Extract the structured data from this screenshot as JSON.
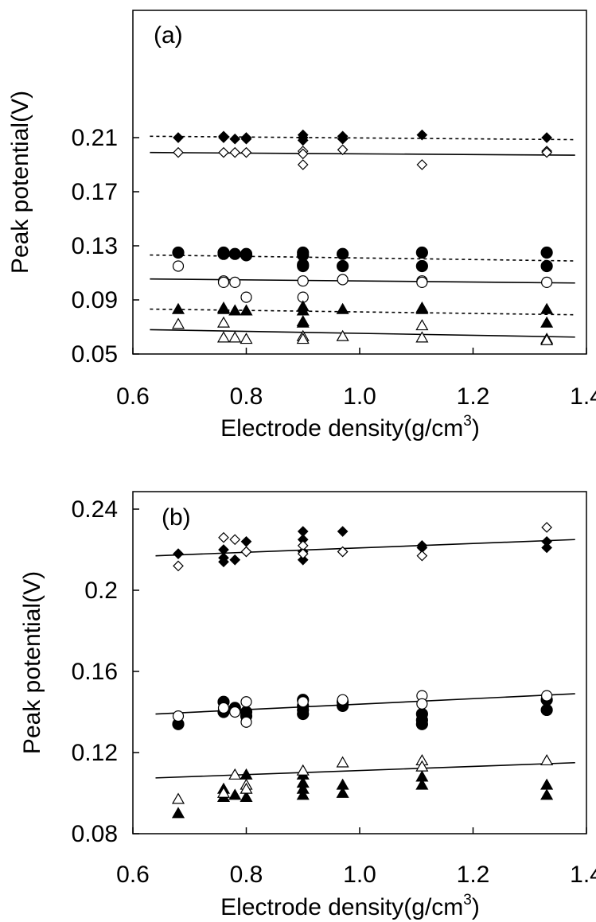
{
  "chart_data": [
    {
      "type": "scatter",
      "panel_label": "(a)",
      "xlabel": "Electrode density(g/cm",
      "xlabel_sup": "3",
      "xlabel_close": ")",
      "ylabel": "Peak potential(V)",
      "xlim": [
        0.6,
        1.4
      ],
      "ylim": [
        0.05,
        0.23
      ],
      "xticks": [
        "0.6",
        "0.8",
        "1.0",
        "1.2",
        "1.4"
      ],
      "yticks": [
        "0.05",
        "0.09",
        "0.13",
        "0.17",
        "0.21"
      ],
      "series": [
        {
          "marker": "diamond",
          "filled": true,
          "x": [
            0.68,
            0.76,
            0.76,
            0.78,
            0.8,
            0.8,
            0.9,
            0.9,
            0.9,
            0.97,
            0.97,
            1.11,
            1.33
          ],
          "y": [
            0.21,
            0.211,
            0.21,
            0.209,
            0.21,
            0.209,
            0.212,
            0.21,
            0.208,
            0.211,
            0.209,
            0.212,
            0.21
          ]
        },
        {
          "marker": "diamond",
          "filled": false,
          "x": [
            0.68,
            0.76,
            0.78,
            0.8,
            0.9,
            0.9,
            0.9,
            0.97,
            1.11,
            1.33,
            1.33
          ],
          "y": [
            0.199,
            0.199,
            0.199,
            0.199,
            0.2,
            0.198,
            0.19,
            0.201,
            0.19,
            0.2,
            0.199
          ]
        },
        {
          "marker": "circle",
          "filled": true,
          "x": [
            0.68,
            0.76,
            0.76,
            0.78,
            0.8,
            0.8,
            0.9,
            0.9,
            0.9,
            0.9,
            0.97,
            0.97,
            1.11,
            1.11,
            1.33,
            1.33
          ],
          "y": [
            0.125,
            0.125,
            0.124,
            0.124,
            0.124,
            0.123,
            0.125,
            0.123,
            0.116,
            0.115,
            0.124,
            0.115,
            0.125,
            0.115,
            0.125,
            0.115
          ]
        },
        {
          "marker": "circle",
          "filled": false,
          "x": [
            0.68,
            0.76,
            0.76,
            0.78,
            0.8,
            0.9,
            0.9,
            0.97,
            1.11,
            1.11,
            1.33
          ],
          "y": [
            0.115,
            0.104,
            0.103,
            0.103,
            0.092,
            0.104,
            0.092,
            0.105,
            0.104,
            0.103,
            0.103
          ]
        },
        {
          "marker": "triangle",
          "filled": true,
          "x": [
            0.68,
            0.76,
            0.76,
            0.78,
            0.8,
            0.9,
            0.9,
            0.9,
            0.9,
            0.97,
            1.11,
            1.11,
            1.33,
            1.33
          ],
          "y": [
            0.083,
            0.084,
            0.083,
            0.082,
            0.082,
            0.085,
            0.082,
            0.074,
            0.073,
            0.083,
            0.084,
            0.083,
            0.083,
            0.073
          ]
        },
        {
          "marker": "triangle",
          "filled": false,
          "x": [
            0.68,
            0.76,
            0.76,
            0.78,
            0.8,
            0.9,
            0.9,
            0.97,
            1.11,
            1.11,
            1.33,
            1.33
          ],
          "y": [
            0.072,
            0.073,
            0.062,
            0.062,
            0.061,
            0.063,
            0.061,
            0.063,
            0.071,
            0.062,
            0.061,
            0.06
          ]
        }
      ],
      "fits": [
        {
          "dashed": true,
          "x": [
            0.63,
            1.38
          ],
          "y": [
            0.211,
            0.2085
          ]
        },
        {
          "dashed": false,
          "x": [
            0.63,
            1.38
          ],
          "y": [
            0.199,
            0.197
          ]
        },
        {
          "dashed": true,
          "x": [
            0.63,
            1.38
          ],
          "y": [
            0.1232,
            0.1188
          ]
        },
        {
          "dashed": false,
          "x": [
            0.63,
            1.38
          ],
          "y": [
            0.1055,
            0.1025
          ]
        },
        {
          "dashed": true,
          "x": [
            0.63,
            1.38
          ],
          "y": [
            0.0832,
            0.079
          ]
        },
        {
          "dashed": false,
          "x": [
            0.63,
            1.38
          ],
          "y": [
            0.068,
            0.0625
          ]
        }
      ]
    },
    {
      "type": "scatter",
      "panel_label": "(b)",
      "xlabel": "Electrode density(g/cm",
      "xlabel_sup": "3",
      "xlabel_close": ")",
      "ylabel": "Peak potential(V)",
      "xlim": [
        0.6,
        1.4
      ],
      "ylim": [
        0.08,
        0.25
      ],
      "xticks": [
        "0.6",
        "0.8",
        "1.0",
        "1.2",
        "1.4"
      ],
      "yticks": [
        "0.08",
        "0.12",
        "0.16",
        "0.2",
        "0.24"
      ],
      "series": [
        {
          "marker": "diamond",
          "filled": true,
          "x": [
            0.68,
            0.76,
            0.76,
            0.76,
            0.78,
            0.8,
            0.8,
            0.9,
            0.9,
            0.9,
            0.9,
            0.97,
            0.97,
            1.11,
            1.11,
            1.33,
            1.33
          ],
          "y": [
            0.218,
            0.22,
            0.216,
            0.214,
            0.215,
            0.224,
            0.219,
            0.229,
            0.225,
            0.219,
            0.215,
            0.229,
            0.219,
            0.222,
            0.221,
            0.224,
            0.221
          ]
        },
        {
          "marker": "diamond",
          "filled": false,
          "x": [
            0.68,
            0.76,
            0.78,
            0.8,
            0.9,
            0.9,
            0.97,
            1.11,
            1.33
          ],
          "y": [
            0.212,
            0.226,
            0.225,
            0.219,
            0.222,
            0.218,
            0.219,
            0.217,
            0.231
          ]
        },
        {
          "marker": "circle",
          "filled": true,
          "x": [
            0.68,
            0.76,
            0.76,
            0.78,
            0.8,
            0.8,
            0.9,
            0.9,
            0.9,
            0.9,
            0.97,
            0.97,
            1.11,
            1.11,
            1.11,
            1.33,
            1.33
          ],
          "y": [
            0.134,
            0.145,
            0.14,
            0.142,
            0.14,
            0.138,
            0.146,
            0.143,
            0.141,
            0.139,
            0.145,
            0.143,
            0.139,
            0.136,
            0.134,
            0.146,
            0.141
          ]
        },
        {
          "marker": "circle",
          "filled": false,
          "x": [
            0.68,
            0.76,
            0.78,
            0.8,
            0.8,
            0.9,
            0.97,
            1.11,
            1.11,
            1.33
          ],
          "y": [
            0.138,
            0.142,
            0.14,
            0.145,
            0.135,
            0.145,
            0.146,
            0.148,
            0.144,
            0.148
          ]
        },
        {
          "marker": "triangle",
          "filled": true,
          "x": [
            0.68,
            0.76,
            0.76,
            0.78,
            0.8,
            0.8,
            0.9,
            0.9,
            0.9,
            0.9,
            0.97,
            0.97,
            1.11,
            1.11,
            1.33,
            1.33
          ],
          "y": [
            0.09,
            0.102,
            0.098,
            0.099,
            0.109,
            0.098,
            0.109,
            0.105,
            0.102,
            0.099,
            0.104,
            0.1,
            0.108,
            0.104,
            0.104,
            0.099
          ]
        },
        {
          "marker": "triangle",
          "filled": false,
          "x": [
            0.68,
            0.76,
            0.78,
            0.8,
            0.8,
            0.9,
            0.97,
            1.11,
            1.11,
            1.33
          ],
          "y": [
            0.097,
            0.1,
            0.109,
            0.104,
            0.102,
            0.111,
            0.115,
            0.116,
            0.113,
            0.116
          ]
        }
      ],
      "fits": [
        {
          "dashed": false,
          "x": [
            0.64,
            1.38
          ],
          "y": [
            0.217,
            0.225
          ]
        },
        {
          "dashed": false,
          "x": [
            0.64,
            1.38
          ],
          "y": [
            0.139,
            0.149
          ]
        },
        {
          "dashed": false,
          "x": [
            0.64,
            1.38
          ],
          "y": [
            0.1075,
            0.115
          ]
        }
      ]
    }
  ]
}
